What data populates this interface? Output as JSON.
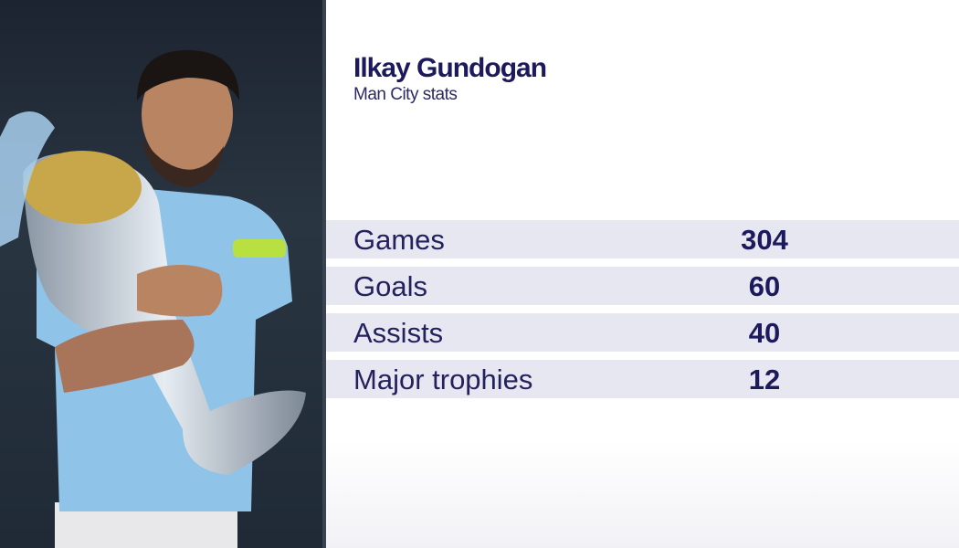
{
  "header": {
    "title": "Ilkay Gundogan",
    "subtitle": "Man City stats"
  },
  "stats": [
    {
      "label": "Games",
      "value": "304"
    },
    {
      "label": "Goals",
      "value": "60"
    },
    {
      "label": "Assists",
      "value": "40"
    },
    {
      "label": "Major trophies",
      "value": "12"
    }
  ],
  "colors": {
    "text": "#1c1a5c",
    "row_bg": "#e7e7f1",
    "shirt": "#8fc3e8"
  }
}
